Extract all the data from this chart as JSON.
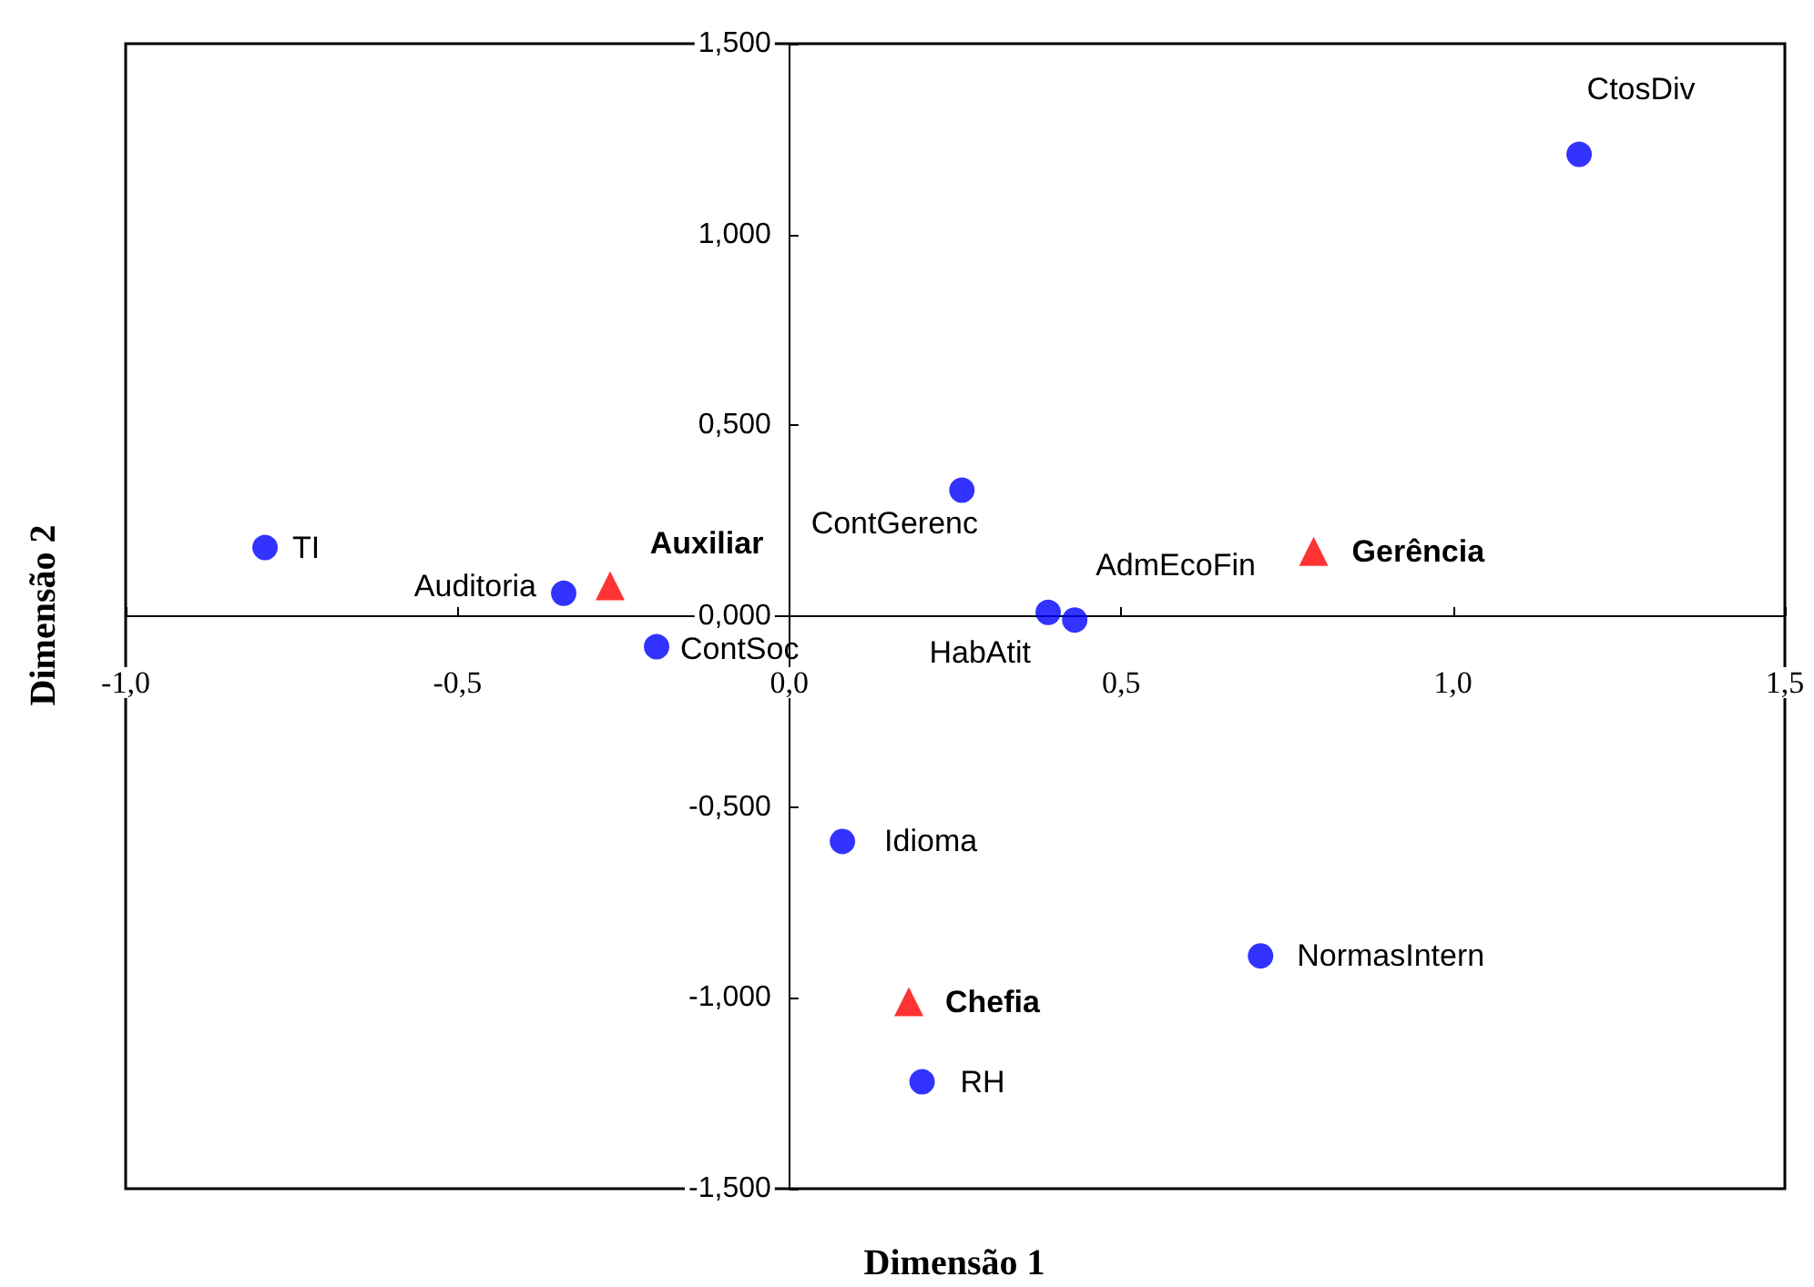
{
  "chart_data": {
    "type": "scatter",
    "xlabel": "Dimensão 1",
    "ylabel": "Dimensão 2",
    "xlim": [
      -1,
      1.5
    ],
    "ylim": [
      -1.5,
      1.5
    ],
    "xticks": [
      {
        "value": -1,
        "label": "-1,0"
      },
      {
        "value": -0.5,
        "label": "-0,5"
      },
      {
        "value": 0,
        "label": "0,0"
      },
      {
        "value": 0.5,
        "label": "0,5"
      },
      {
        "value": 1,
        "label": "1,0"
      },
      {
        "value": 1.5,
        "label": "1,5"
      }
    ],
    "yticks": [
      {
        "value": -1.5,
        "label": "-1,500"
      },
      {
        "value": -1,
        "label": "-1,000"
      },
      {
        "value": -0.5,
        "label": "-0,500"
      },
      {
        "value": 0,
        "label": "0,000"
      },
      {
        "value": 0.5,
        "label": "0,500"
      },
      {
        "value": 1,
        "label": "1,000"
      },
      {
        "value": 1.5,
        "label": "1,500"
      }
    ],
    "grid": false,
    "series": [
      {
        "color": "#0000ff",
        "marker": "circle",
        "x": [
          -0.79,
          -0.34,
          -0.2,
          0.26,
          0.39,
          0.43,
          1.19,
          0.08,
          0.71,
          0.2
        ],
        "values": [
          0.18,
          0.06,
          -0.08,
          0.33,
          0.01,
          -0.01,
          1.21,
          -0.59,
          -0.89,
          -1.22
        ]
      },
      {
        "color": "#ff0000",
        "marker": "triangle",
        "x": [
          -0.27,
          0.79,
          0.18
        ],
        "values": [
          0.08,
          0.17,
          -1.01
        ]
      }
    ],
    "annotations": [
      {
        "text": "TI",
        "x": -0.79,
        "y": 0.18
      },
      {
        "text": "Auditoria",
        "x": -0.34,
        "y": 0.06
      },
      {
        "text": "ContSoc",
        "x": -0.2,
        "y": -0.08
      },
      {
        "text": "ContGerenc",
        "x": 0.26,
        "y": 0.33
      },
      {
        "text": "AdmEcoFin",
        "x": 0.39,
        "y": 0.01
      },
      {
        "text": "HabAtit",
        "x": 0.43,
        "y": -0.01
      },
      {
        "text": "CtosDiv",
        "x": 1.19,
        "y": 1.21
      },
      {
        "text": "Idioma",
        "x": 0.08,
        "y": -0.59
      },
      {
        "text": "NormasIntern",
        "x": 0.71,
        "y": -0.89
      },
      {
        "text": "RH",
        "x": 0.2,
        "y": -1.22
      },
      {
        "text": "Auxiliar",
        "x": -0.27,
        "y": 0.08
      },
      {
        "text": "Gerência",
        "x": 0.79,
        "y": 0.17
      },
      {
        "text": "Chefia",
        "x": 0.18,
        "y": -1.01
      }
    ]
  }
}
